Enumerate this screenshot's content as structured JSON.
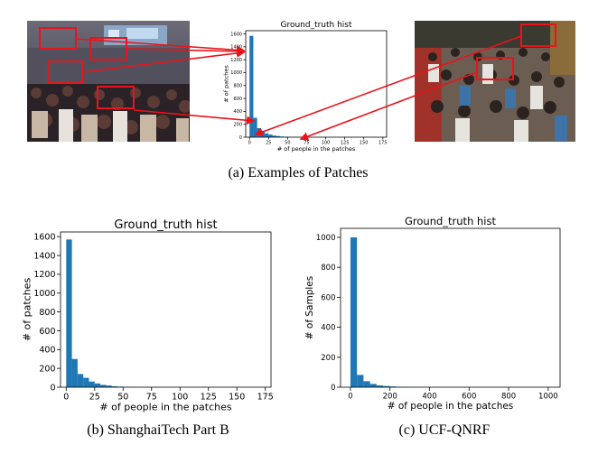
{
  "figure": {
    "caption_a": "(a) Examples of Patches",
    "caption_b": "(b) ShanghaiTech Part B",
    "caption_c": "(c) UCF-QNRF",
    "photo_left_desc": "crowd-photo-waterfront",
    "photo_right_desc": "crowd-photo-street"
  },
  "colors": {
    "bar": "#1f77b4",
    "annotation": "#e8141b"
  },
  "chart_data": [
    {
      "id": "small",
      "type": "bar",
      "title": "Ground_truth hist",
      "xlabel": "# of people in the patches",
      "ylabel": "# of patches",
      "xlim": [
        -5,
        180
      ],
      "ylim": [
        0,
        1650
      ],
      "xticks": [
        0,
        25,
        50,
        75,
        100,
        125,
        150,
        175
      ],
      "yticks": [
        0,
        200,
        400,
        600,
        800,
        1000,
        1200,
        1400,
        1600
      ],
      "bins": [
        [
          0,
          5,
          1570
        ],
        [
          5,
          10,
          300
        ],
        [
          10,
          15,
          140
        ],
        [
          15,
          20,
          100
        ],
        [
          20,
          25,
          60
        ],
        [
          25,
          30,
          40
        ],
        [
          30,
          35,
          25
        ],
        [
          35,
          40,
          18
        ],
        [
          40,
          45,
          10
        ],
        [
          45,
          50,
          6
        ],
        [
          50,
          55,
          4
        ],
        [
          55,
          60,
          3
        ],
        [
          60,
          65,
          2
        ],
        [
          65,
          70,
          1
        ],
        [
          70,
          75,
          1
        ],
        [
          75,
          80,
          1
        ],
        [
          80,
          85,
          0
        ],
        [
          85,
          90,
          0
        ],
        [
          90,
          95,
          0
        ],
        [
          95,
          100,
          0
        ],
        [
          100,
          105,
          0
        ],
        [
          105,
          110,
          0
        ],
        [
          110,
          115,
          0
        ],
        [
          115,
          120,
          0
        ],
        [
          120,
          125,
          0
        ],
        [
          125,
          130,
          0
        ],
        [
          130,
          135,
          0
        ],
        [
          135,
          140,
          0
        ],
        [
          140,
          145,
          0
        ],
        [
          145,
          150,
          0
        ],
        [
          150,
          155,
          0
        ],
        [
          155,
          160,
          0
        ],
        [
          160,
          165,
          0
        ],
        [
          165,
          170,
          0
        ],
        [
          170,
          175,
          0
        ]
      ]
    },
    {
      "id": "b",
      "type": "bar",
      "title": "Ground_truth hist",
      "xlabel": "# of people in the patches",
      "ylabel": "# of patches",
      "xlim": [
        -5,
        180
      ],
      "ylim": [
        0,
        1650
      ],
      "xticks": [
        0,
        25,
        50,
        75,
        100,
        125,
        150,
        175
      ],
      "yticks": [
        0,
        200,
        400,
        600,
        800,
        1000,
        1200,
        1400,
        1600
      ],
      "bins": [
        [
          0,
          5,
          1570
        ],
        [
          5,
          10,
          300
        ],
        [
          10,
          15,
          140
        ],
        [
          15,
          20,
          100
        ],
        [
          20,
          25,
          60
        ],
        [
          25,
          30,
          40
        ],
        [
          30,
          35,
          25
        ],
        [
          35,
          40,
          18
        ],
        [
          40,
          45,
          10
        ],
        [
          45,
          50,
          6
        ],
        [
          50,
          55,
          4
        ],
        [
          55,
          60,
          3
        ],
        [
          60,
          65,
          2
        ],
        [
          65,
          70,
          1
        ],
        [
          70,
          75,
          1
        ],
        [
          75,
          80,
          1
        ],
        [
          80,
          85,
          0
        ],
        [
          85,
          90,
          0
        ],
        [
          90,
          95,
          0
        ],
        [
          95,
          100,
          0
        ],
        [
          100,
          105,
          0
        ],
        [
          105,
          110,
          0
        ],
        [
          110,
          115,
          0
        ],
        [
          115,
          120,
          0
        ],
        [
          120,
          125,
          0
        ],
        [
          125,
          130,
          0
        ],
        [
          130,
          135,
          0
        ],
        [
          135,
          140,
          0
        ],
        [
          140,
          145,
          0
        ],
        [
          145,
          150,
          0
        ],
        [
          150,
          155,
          0
        ],
        [
          155,
          160,
          0
        ],
        [
          160,
          165,
          0
        ],
        [
          165,
          170,
          0
        ],
        [
          170,
          175,
          0
        ]
      ]
    },
    {
      "id": "c",
      "type": "bar",
      "title": "Ground_truth hist",
      "xlabel": "# of people in the patches",
      "ylabel": "# of Samples",
      "xlim": [
        -50,
        1060
      ],
      "ylim": [
        0,
        1060
      ],
      "xticks": [
        0,
        200,
        400,
        600,
        800,
        1000
      ],
      "yticks": [
        0,
        200,
        400,
        600,
        800,
        1000
      ],
      "bins": [
        [
          0,
          33,
          1000
        ],
        [
          33,
          66,
          82
        ],
        [
          66,
          99,
          40
        ],
        [
          99,
          132,
          22
        ],
        [
          132,
          165,
          12
        ],
        [
          165,
          198,
          8
        ],
        [
          198,
          231,
          5
        ],
        [
          231,
          264,
          3
        ],
        [
          264,
          297,
          2
        ],
        [
          297,
          330,
          1
        ],
        [
          330,
          363,
          1
        ],
        [
          363,
          396,
          0
        ],
        [
          396,
          429,
          1
        ],
        [
          429,
          462,
          0
        ],
        [
          462,
          495,
          0
        ],
        [
          495,
          528,
          0
        ],
        [
          528,
          561,
          0
        ],
        [
          561,
          594,
          0
        ],
        [
          594,
          627,
          0
        ],
        [
          627,
          660,
          0
        ],
        [
          660,
          693,
          0
        ],
        [
          693,
          726,
          0
        ],
        [
          726,
          759,
          0
        ],
        [
          759,
          792,
          0
        ],
        [
          792,
          825,
          0
        ],
        [
          825,
          858,
          0
        ],
        [
          858,
          891,
          0
        ],
        [
          891,
          924,
          0
        ],
        [
          924,
          957,
          0
        ],
        [
          957,
          990,
          0
        ]
      ]
    }
  ]
}
